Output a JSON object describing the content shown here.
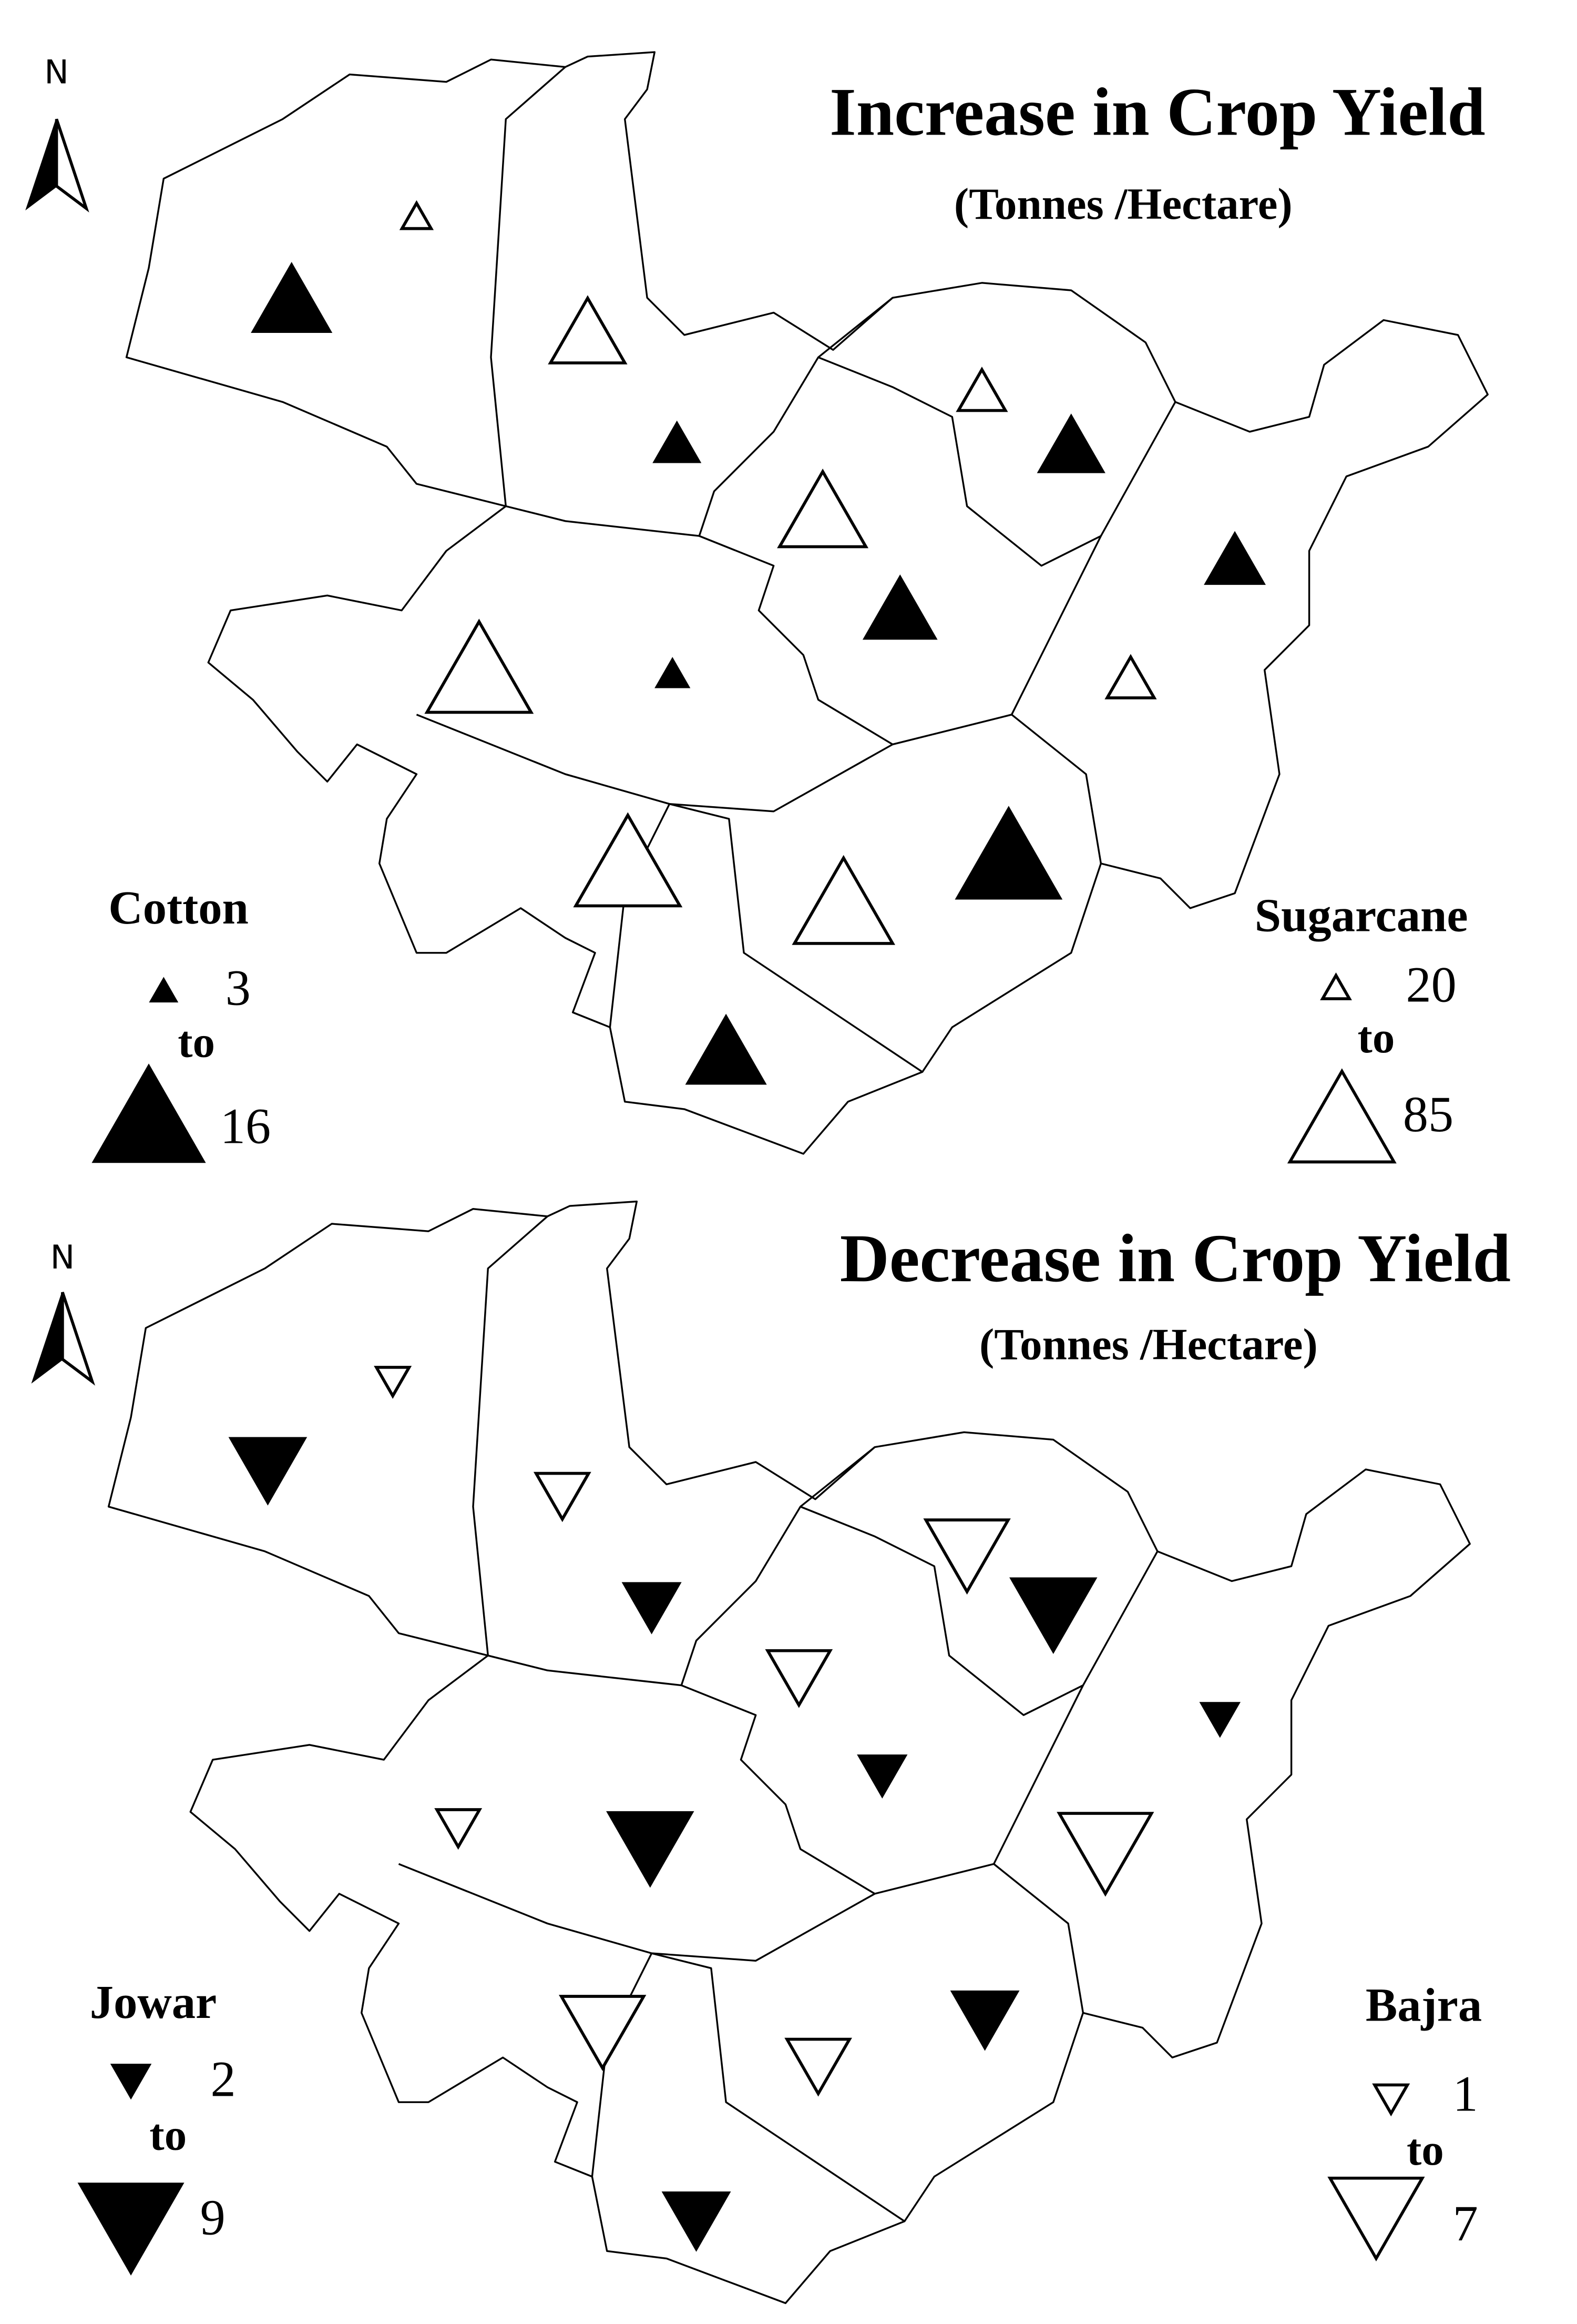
{
  "maps": [
    {
      "north": "N",
      "title": "Increase in Crop Yield",
      "subtitle": "(Tonnes /Hectare)",
      "legends": [
        {
          "name": "Cotton",
          "min": 3,
          "to": "to",
          "max": 16,
          "values": [
            11,
            6,
            9,
            8,
            10,
            4,
            15,
            11
          ]
        },
        {
          "name": "Sugarcane",
          "min": 20,
          "to": "to",
          "max": 85,
          "values": [
            22,
            60,
            37,
            70,
            37,
            85,
            85,
            80
          ]
        }
      ]
    },
    {
      "north": "N",
      "title": "Decrease in Crop Yield",
      "subtitle": "(Tonnes /Hectare)",
      "legends": [
        {
          "name": "Jowar",
          "min": 2,
          "to": "to",
          "max": 9,
          "values": [
            6,
            4,
            7,
            2,
            3,
            7,
            5,
            5
          ]
        },
        {
          "name": "Bajra",
          "min": 1,
          "to": "to",
          "max": 7,
          "values": [
            1,
            3,
            6,
            4,
            2,
            7,
            6,
            4
          ]
        }
      ]
    }
  ]
}
